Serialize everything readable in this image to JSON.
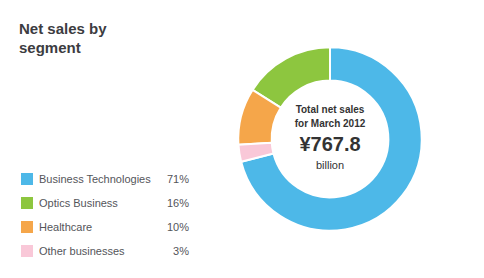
{
  "chart_data": {
    "type": "pie",
    "title": "Net sales by\nsegment",
    "categories": [
      "Business Technologies",
      "Optics Business",
      "Healthcare",
      "Other businesses"
    ],
    "values": [
      71,
      16,
      10,
      3
    ],
    "value_labels": [
      "71%",
      "16%",
      "10%",
      " 3%"
    ],
    "colors": [
      "#4db8e8",
      "#8dc63f",
      "#f5a64a",
      "#f9c8d8"
    ],
    "legend": "lower left",
    "annotations": [
      "Total net sales",
      "for March 2012",
      "¥767.8",
      "billion"
    ]
  }
}
